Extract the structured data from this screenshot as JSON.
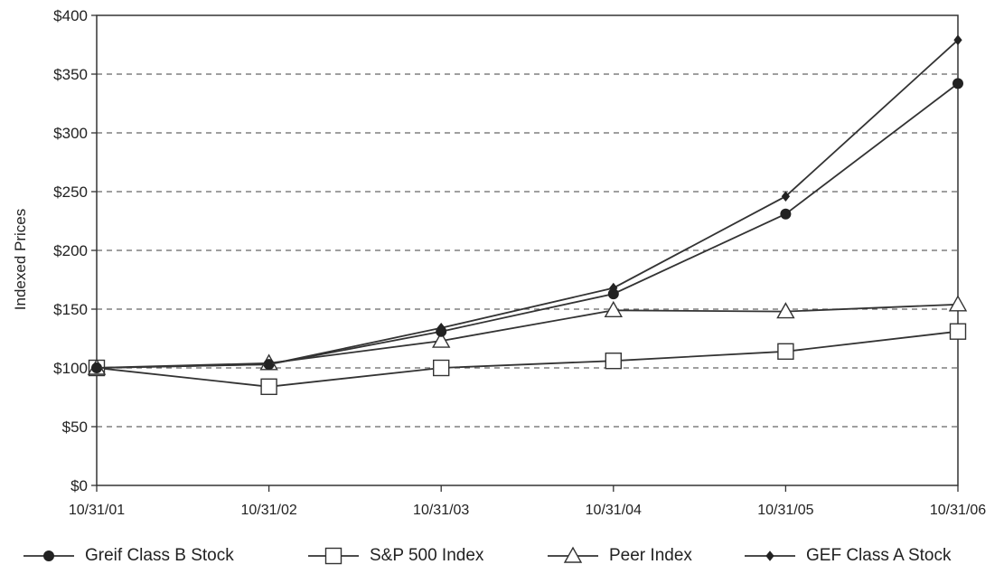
{
  "chart_data": {
    "type": "line",
    "ylabel": "Indexed Prices",
    "xlabel": "",
    "categories": [
      "10/31/01",
      "10/31/02",
      "10/31/03",
      "10/31/04",
      "10/31/05",
      "10/31/06"
    ],
    "ylim": [
      0,
      400
    ],
    "y_ticks": [
      "$0",
      "$50",
      "$100",
      "$150",
      "$200",
      "$250",
      "$300",
      "$350",
      "$400"
    ],
    "grid": "horizontal dashed",
    "legend_position": "bottom",
    "series": [
      {
        "name": "Greif Class B Stock",
        "marker": "filled-circle",
        "values": [
          100,
          103,
          131,
          163,
          231,
          342
        ]
      },
      {
        "name": "S&P 500 Index",
        "marker": "open-square",
        "values": [
          100,
          84,
          100,
          106,
          114,
          131
        ]
      },
      {
        "name": "Peer Index",
        "marker": "open-triangle",
        "values": [
          100,
          104,
          123,
          149,
          148,
          154
        ]
      },
      {
        "name": "GEF Class A Stock",
        "marker": "small-diamond",
        "values": [
          100,
          103,
          134,
          168,
          246,
          379
        ]
      }
    ]
  }
}
